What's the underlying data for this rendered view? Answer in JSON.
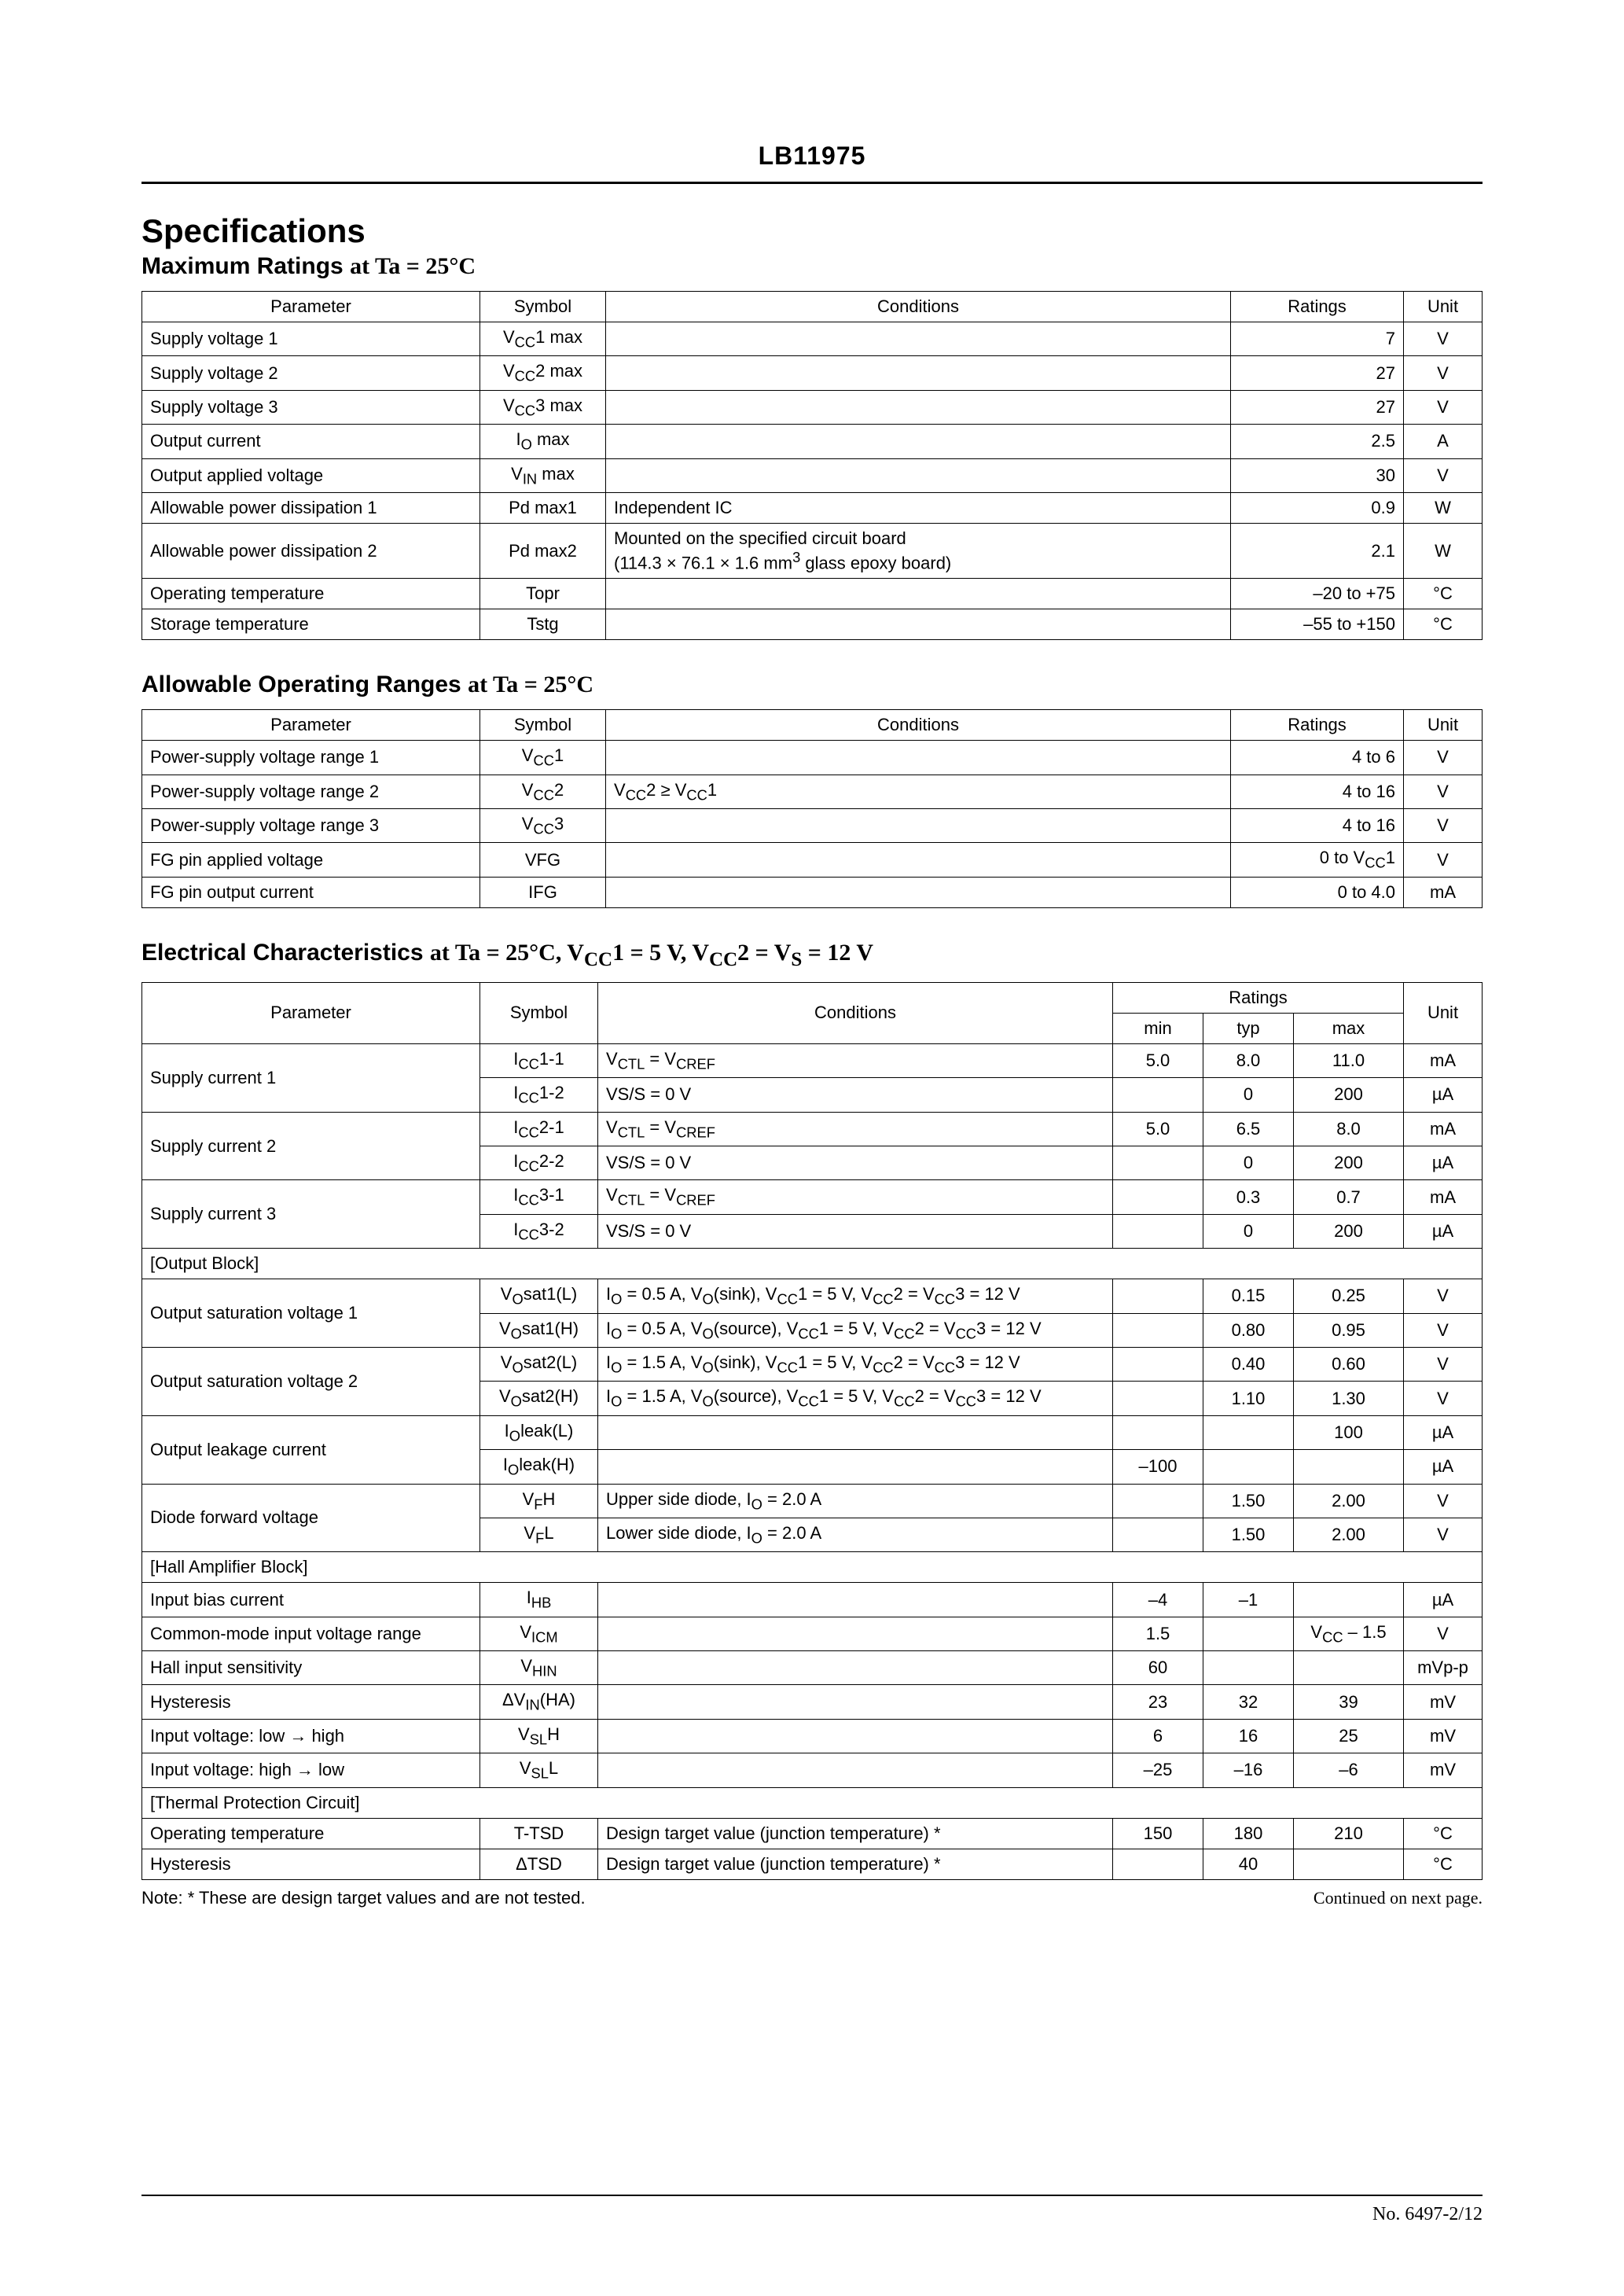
{
  "doc": {
    "part_number": "LB11975",
    "page_no": "No. 6497-2/12",
    "specifications_heading": "Specifications",
    "note": "Note: * These are design target values and are not tested.",
    "continued": "Continued on next page."
  },
  "table_max": {
    "heading_a": "Maximum Ratings ",
    "heading_b": "at Ta = 25°C",
    "cols": {
      "parameter": "Parameter",
      "symbol": "Symbol",
      "conditions": "Conditions",
      "ratings": "Ratings",
      "unit": "Unit"
    },
    "rows": [
      {
        "p": "Supply voltage 1",
        "s": "V<sub>CC</sub>1 max",
        "c": "",
        "r": "7",
        "u": "V"
      },
      {
        "p": "Supply voltage 2",
        "s": "V<sub>CC</sub>2 max",
        "c": "",
        "r": "27",
        "u": "V"
      },
      {
        "p": "Supply voltage 3",
        "s": "V<sub>CC</sub>3 max",
        "c": "",
        "r": "27",
        "u": "V"
      },
      {
        "p": "Output current",
        "s": "I<sub>O</sub> max",
        "c": "",
        "r": "2.5",
        "u": "A"
      },
      {
        "p": "Output applied voltage",
        "s": "V<sub>IN</sub> max",
        "c": "",
        "r": "30",
        "u": "V"
      },
      {
        "p": "Allowable power dissipation 1",
        "s": "Pd max1",
        "c": "Independent IC",
        "r": "0.9",
        "u": "W"
      },
      {
        "p": "Allowable power dissipation 2",
        "s": "Pd max2",
        "c": "Mounted on the specified circuit board<br>(114.3 × 76.1 × 1.6 mm<sup>3</sup> glass epoxy board)",
        "r": "2.1",
        "u": "W"
      },
      {
        "p": "Operating temperature",
        "s": "Topr",
        "c": "",
        "r": "–20 to +75",
        "u": "°C"
      },
      {
        "p": "Storage temperature",
        "s": "Tstg",
        "c": "",
        "r": "–55 to +150",
        "u": "°C"
      }
    ]
  },
  "table_op": {
    "heading_a": "Allowable Operating Ranges ",
    "heading_b": "at Ta = 25°C",
    "cols": {
      "parameter": "Parameter",
      "symbol": "Symbol",
      "conditions": "Conditions",
      "ratings": "Ratings",
      "unit": "Unit"
    },
    "rows": [
      {
        "p": "Power-supply voltage range 1",
        "s": "V<sub>CC</sub>1",
        "c": "",
        "r": "4 to 6",
        "u": "V"
      },
      {
        "p": "Power-supply voltage range 2",
        "s": "V<sub>CC</sub>2",
        "c": "V<sub>CC</sub>2 ≥ V<sub>CC</sub>1",
        "r": "4 to 16",
        "u": "V"
      },
      {
        "p": "Power-supply voltage range 3",
        "s": "V<sub>CC</sub>3",
        "c": "",
        "r": "4 to 16",
        "u": "V"
      },
      {
        "p": "FG pin applied voltage",
        "s": "VFG",
        "c": "",
        "r": "0 to V<sub>CC</sub>1",
        "u": "V"
      },
      {
        "p": "FG pin output current",
        "s": "IFG",
        "c": "",
        "r": "0 to 4.0",
        "u": "mA"
      }
    ]
  },
  "table_elec": {
    "heading_a": "Electrical Characteristics ",
    "heading_b": "at Ta = 25°C, V<sub>CC</sub>1 = 5 V, V<sub>CC</sub>2 = V<sub>S</sub> = 12 V",
    "cols": {
      "parameter": "Parameter",
      "symbol": "Symbol",
      "conditions": "Conditions",
      "ratings": "Ratings",
      "min": "min",
      "typ": "typ",
      "max": "max",
      "unit": "Unit"
    },
    "groups": [
      {
        "rows": [
          {
            "p": "Supply current 1",
            "span": 2,
            "s": "I<sub>CC</sub>1-1",
            "c": "V<sub>CTL</sub> = V<sub>CREF</sub>",
            "min": "5.0",
            "typ": "8.0",
            "max": "11.0",
            "u": "mA"
          },
          {
            "s": "I<sub>CC</sub>1-2",
            "c": "VS/S = 0 V",
            "min": "",
            "typ": "0",
            "max": "200",
            "u": "µA"
          },
          {
            "p": "Supply current 2",
            "span": 2,
            "s": "I<sub>CC</sub>2-1",
            "c": "V<sub>CTL</sub> = V<sub>CREF</sub>",
            "min": "5.0",
            "typ": "6.5",
            "max": "8.0",
            "u": "mA"
          },
          {
            "s": "I<sub>CC</sub>2-2",
            "c": "VS/S = 0 V",
            "min": "",
            "typ": "0",
            "max": "200",
            "u": "µA"
          },
          {
            "p": "Supply current 3",
            "span": 2,
            "s": "I<sub>CC</sub>3-1",
            "c": "V<sub>CTL</sub> = V<sub>CREF</sub>",
            "min": "",
            "typ": "0.3",
            "max": "0.7",
            "u": "mA"
          },
          {
            "s": "I<sub>CC</sub>3-2",
            "c": "VS/S = 0 V",
            "min": "",
            "typ": "0",
            "max": "200",
            "u": "µA"
          }
        ]
      },
      {
        "title": "[Output Block]",
        "rows": [
          {
            "p": "Output saturation voltage 1",
            "span": 2,
            "s": "V<sub>O</sub>sat1(L)",
            "c": "I<sub>O</sub> = 0.5 A, V<sub>O</sub>(sink), V<sub>CC</sub>1 = 5 V, V<sub>CC</sub>2 = V<sub>CC</sub>3 = 12 V",
            "min": "",
            "typ": "0.15",
            "max": "0.25",
            "u": "V"
          },
          {
            "s": "V<sub>O</sub>sat1(H)",
            "c": "I<sub>O</sub> = 0.5 A, V<sub>O</sub>(source), V<sub>CC</sub>1 = 5 V, V<sub>CC</sub>2 = V<sub>CC</sub>3 = 12 V",
            "min": "",
            "typ": "0.80",
            "max": "0.95",
            "u": "V"
          },
          {
            "p": "Output saturation voltage 2",
            "span": 2,
            "s": "V<sub>O</sub>sat2(L)",
            "c": "I<sub>O</sub> = 1.5 A, V<sub>O</sub>(sink), V<sub>CC</sub>1 = 5 V, V<sub>CC</sub>2 = V<sub>CC</sub>3 = 12 V",
            "min": "",
            "typ": "0.40",
            "max": "0.60",
            "u": "V"
          },
          {
            "s": "V<sub>O</sub>sat2(H)",
            "c": "I<sub>O</sub> = 1.5 A, V<sub>O</sub>(source), V<sub>CC</sub>1 = 5 V, V<sub>CC</sub>2 = V<sub>CC</sub>3 = 12 V",
            "min": "",
            "typ": "1.10",
            "max": "1.30",
            "u": "V"
          },
          {
            "p": "Output leakage current",
            "span": 2,
            "s": "I<sub>O</sub>leak(L)",
            "c": "",
            "min": "",
            "typ": "",
            "max": "100",
            "u": "µA"
          },
          {
            "s": "I<sub>O</sub>leak(H)",
            "c": "",
            "min": "–100",
            "typ": "",
            "max": "",
            "u": "µA"
          },
          {
            "p": "Diode forward voltage",
            "span": 2,
            "s": "V<sub>F</sub>H",
            "c": "Upper side diode, I<sub>O</sub> = 2.0 A",
            "min": "",
            "typ": "1.50",
            "max": "2.00",
            "u": "V"
          },
          {
            "s": "V<sub>F</sub>L",
            "c": "Lower side diode, I<sub>O</sub> = 2.0 A",
            "min": "",
            "typ": "1.50",
            "max": "2.00",
            "u": "V"
          }
        ]
      },
      {
        "title": "[Hall Amplifier Block]",
        "rows": [
          {
            "p": "Input bias current",
            "span": 1,
            "s": "I<sub>HB</sub>",
            "c": "",
            "min": "–4",
            "typ": "–1",
            "max": "",
            "u": "µA"
          },
          {
            "p": "Common-mode input voltage range",
            "span": 1,
            "s": "V<sub>ICM</sub>",
            "c": "",
            "min": "1.5",
            "typ": "",
            "max": "V<sub>CC</sub> – 1.5",
            "u": "V"
          },
          {
            "p": "Hall input sensitivity",
            "span": 1,
            "s": "V<sub>HIN</sub>",
            "c": "",
            "min": "60",
            "typ": "",
            "max": "",
            "u": "mVp-p"
          },
          {
            "p": "Hysteresis",
            "span": 1,
            "s": "ΔV<sub>IN</sub>(HA)",
            "c": "",
            "min": "23",
            "typ": "32",
            "max": "39",
            "u": "mV"
          },
          {
            "p": "Input voltage: low → high",
            "span": 1,
            "s": "V<sub>SL</sub>H",
            "c": "",
            "min": "6",
            "typ": "16",
            "max": "25",
            "u": "mV"
          },
          {
            "p": "Input voltage: high → low",
            "span": 1,
            "s": "V<sub>SL</sub>L",
            "c": "",
            "min": "–25",
            "typ": "–16",
            "max": "–6",
            "u": "mV"
          }
        ]
      },
      {
        "title": "[Thermal Protection Circuit]",
        "rows": [
          {
            "p": "Operating temperature",
            "span": 1,
            "s": "T-TSD",
            "c": "Design target value (junction temperature) *",
            "min": "150",
            "typ": "180",
            "max": "210",
            "u": "°C"
          },
          {
            "p": "Hysteresis",
            "span": 1,
            "s": "ΔTSD",
            "c": "Design target value (junction temperature) *",
            "min": "",
            "typ": "40",
            "max": "",
            "u": "°C"
          }
        ]
      }
    ]
  }
}
